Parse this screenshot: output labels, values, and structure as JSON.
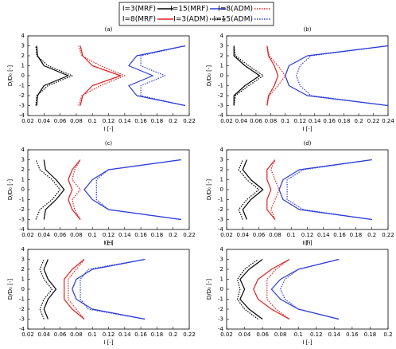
{
  "chart_data": {
    "type": "line",
    "legend": [
      {
        "name": "I=3(MRF)",
        "color": "#000000",
        "dash": "solid"
      },
      {
        "name": "I=15(MRF)",
        "color": "#2b3bd6",
        "dash": "solid"
      },
      {
        "name": "I=8(ADM)",
        "color": "#e02020",
        "dash": "dotted"
      },
      {
        "name": "I=8(MRF)",
        "color": "#e02020",
        "dash": "solid"
      },
      {
        "name": "I=3(ADM)",
        "color": "#000000",
        "dash": "dotted"
      },
      {
        "name": "I=15(ADM)",
        "color": "#2b3bd6",
        "dash": "dotted"
      }
    ],
    "panels": [
      {
        "label": "(a)",
        "xlabel": "I [-]",
        "ylabel": "D/D₀ [-]",
        "xlim": [
          0.02,
          0.22
        ],
        "xticks": [
          0.02,
          0.04,
          0.06,
          0.08,
          0.1,
          0.12,
          0.14,
          0.16,
          0.18,
          0.2,
          0.22
        ],
        "ylim": [
          -4,
          4
        ],
        "yticks": [
          -4,
          -3,
          -2,
          -1,
          0,
          1,
          2,
          3,
          4
        ],
        "series": [
          {
            "x": [
              0.031,
              0.032,
              0.04,
              0.07,
              0.04,
              0.032,
              0.031
            ],
            "values": [
              -3,
              -2,
              -1,
              0,
              1,
              2,
              3
            ]
          },
          {
            "x": [
              0.215,
              0.155,
              0.145,
              0.175,
              0.145,
              0.155,
              0.215
            ],
            "values": [
              -3,
              -2,
              -1,
              0,
              1,
              2,
              3
            ]
          },
          {
            "x": [
              0.083,
              0.087,
              0.11,
              0.14,
              0.11,
              0.087,
              0.083
            ],
            "values": [
              -3,
              -2,
              -1,
              0,
              1,
              2,
              3
            ]
          },
          {
            "x": [
              0.085,
              0.088,
              0.1,
              0.135,
              0.1,
              0.088,
              0.085
            ],
            "values": [
              -3,
              -2,
              -1,
              0,
              1,
              2,
              3
            ]
          },
          {
            "x": [
              0.03,
              0.031,
              0.045,
              0.075,
              0.045,
              0.031,
              0.03
            ],
            "values": [
              -3,
              -2,
              -1,
              0,
              1,
              2,
              3
            ]
          },
          {
            "x": [
              0.215,
              0.16,
              0.16,
              0.19,
              0.16,
              0.16,
              0.215
            ],
            "values": [
              -3,
              -2,
              -1,
              0,
              1,
              2,
              3
            ]
          }
        ]
      },
      {
        "label": "(b)",
        "xlabel": "I [-]",
        "ylabel": "D/D₀ [-]",
        "xlim": [
          0.02,
          0.24
        ],
        "xticks": [
          0.02,
          0.04,
          0.06,
          0.08,
          0.1,
          0.12,
          0.14,
          0.16,
          0.18,
          0.2,
          0.22,
          0.24
        ],
        "ylim": [
          -4,
          4
        ],
        "yticks": [
          -4,
          -3,
          -2,
          -1,
          0,
          1,
          2,
          3,
          4
        ],
        "series": [
          {
            "x": [
              0.03,
              0.03,
              0.045,
              0.065,
              0.045,
              0.03,
              0.03
            ],
            "values": [
              -3,
              -2,
              -1,
              0,
              1,
              2,
              3
            ]
          },
          {
            "x": [
              0.24,
              0.13,
              0.105,
              0.1,
              0.105,
              0.13,
              0.24
            ],
            "values": [
              -3,
              -2,
              -1,
              0,
              1,
              2,
              3
            ]
          },
          {
            "x": [
              0.075,
              0.078,
              0.09,
              0.1,
              0.09,
              0.078,
              0.075
            ],
            "values": [
              -3,
              -2,
              -1,
              0,
              1,
              2,
              3
            ]
          },
          {
            "x": [
              0.075,
              0.077,
              0.085,
              0.09,
              0.085,
              0.077,
              0.075
            ],
            "values": [
              -3,
              -2,
              -1,
              0,
              1,
              2,
              3
            ]
          },
          {
            "x": [
              0.03,
              0.032,
              0.05,
              0.07,
              0.05,
              0.032,
              0.03
            ],
            "values": [
              -3,
              -2,
              -1,
              0,
              1,
              2,
              3
            ]
          },
          {
            "x": [
              0.24,
              0.135,
              0.12,
              0.115,
              0.12,
              0.135,
              0.24
            ],
            "values": [
              -3,
              -2,
              -1,
              0,
              1,
              2,
              3
            ]
          }
        ]
      },
      {
        "label": "(c)",
        "xlabel": "I [-]",
        "ylabel": "D/D₀ [-]",
        "xlim": [
          0.02,
          0.22
        ],
        "xticks": [
          0.02,
          0.04,
          0.06,
          0.08,
          0.1,
          0.12,
          0.14,
          0.16,
          0.18,
          0.2,
          0.22
        ],
        "ylim": [
          -4,
          4
        ],
        "yticks": [
          -4,
          -3,
          -2,
          -1,
          0,
          1,
          2,
          3,
          4
        ],
        "series": [
          {
            "x": [
              0.04,
              0.042,
              0.055,
              0.065,
              0.055,
              0.042,
              0.04
            ],
            "values": [
              -3,
              -2,
              -1,
              0,
              1,
              2,
              3
            ]
          },
          {
            "x": [
              0.21,
              0.12,
              0.1,
              0.09,
              0.1,
              0.12,
              0.21
            ],
            "values": [
              -3,
              -2,
              -1,
              0,
              1,
              2,
              3
            ]
          },
          {
            "x": [
              0.085,
              0.078,
              0.075,
              0.085,
              0.075,
              0.078,
              0.085
            ],
            "values": [
              -3,
              -2,
              -1,
              0,
              1,
              2,
              3
            ]
          },
          {
            "x": [
              0.085,
              0.075,
              0.07,
              0.075,
              0.07,
              0.075,
              0.085
            ],
            "values": [
              -3,
              -2,
              -1,
              0,
              1,
              2,
              3
            ]
          },
          {
            "x": [
              0.03,
              0.035,
              0.05,
              0.06,
              0.05,
              0.035,
              0.03
            ],
            "values": [
              -3,
              -2,
              -1,
              0,
              1,
              2,
              3
            ]
          },
          {
            "x": [
              0.21,
              0.12,
              0.105,
              0.105,
              0.105,
              0.12,
              0.21
            ],
            "values": [
              -3,
              -2,
              -1,
              0,
              1,
              2,
              3
            ]
          }
        ]
      },
      {
        "label": "(d)",
        "xlabel": "I [-]",
        "ylabel": "D/D₀ [-]",
        "xlim": [
          0.02,
          0.22
        ],
        "xticks": [
          0.02,
          0.04,
          0.06,
          0.08,
          0.1,
          0.12,
          0.14,
          0.16,
          0.18,
          0.2,
          0.22
        ],
        "ylim": [
          -4,
          4
        ],
        "yticks": [
          -4,
          -3,
          -2,
          -1,
          0,
          1,
          2,
          3,
          4
        ],
        "series": [
          {
            "x": [
              0.045,
              0.04,
              0.05,
              0.065,
              0.05,
              0.04,
              0.045
            ],
            "values": [
              -3,
              -2,
              -1,
              0,
              1,
              2,
              3
            ]
          },
          {
            "x": [
              0.2,
              0.11,
              0.09,
              0.085,
              0.09,
              0.11,
              0.2
            ],
            "values": [
              -3,
              -2,
              -1,
              0,
              1,
              2,
              3
            ]
          },
          {
            "x": [
              0.08,
              0.075,
              0.08,
              0.085,
              0.08,
              0.075,
              0.08
            ],
            "values": [
              -3,
              -2,
              -1,
              0,
              1,
              2,
              3
            ]
          },
          {
            "x": [
              0.08,
              0.07,
              0.07,
              0.075,
              0.07,
              0.07,
              0.08
            ],
            "values": [
              -3,
              -2,
              -1,
              0,
              1,
              2,
              3
            ]
          },
          {
            "x": [
              0.04,
              0.035,
              0.045,
              0.06,
              0.045,
              0.035,
              0.04
            ],
            "values": [
              -3,
              -2,
              -1,
              0,
              1,
              2,
              3
            ]
          },
          {
            "x": [
              0.2,
              0.115,
              0.095,
              0.095,
              0.095,
              0.115,
              0.2
            ],
            "values": [
              -3,
              -2,
              -1,
              0,
              1,
              2,
              3
            ]
          }
        ]
      },
      {
        "label": "(e)",
        "xlabel": "I [-]",
        "ylabel": "D/D₀ [-]",
        "xlim": [
          0.02,
          0.22
        ],
        "xticks": [
          0.02,
          0.04,
          0.06,
          0.08,
          0.1,
          0.12,
          0.14,
          0.16,
          0.18,
          0.2,
          0.22
        ],
        "ylim": [
          -4,
          4
        ],
        "yticks": [
          -4,
          -3,
          -2,
          -1,
          0,
          1,
          2,
          3,
          4
        ],
        "series": [
          {
            "x": [
              0.045,
              0.04,
              0.045,
              0.055,
              0.045,
              0.04,
              0.045
            ],
            "values": [
              -3,
              -2,
              -1,
              0,
              1,
              2,
              3
            ]
          },
          {
            "x": [
              0.165,
              0.1,
              0.08,
              0.075,
              0.08,
              0.1,
              0.165
            ],
            "values": [
              -3,
              -2,
              -1,
              0,
              1,
              2,
              3
            ]
          },
          {
            "x": [
              0.09,
              0.08,
              0.07,
              0.07,
              0.07,
              0.08,
              0.09
            ],
            "values": [
              -3,
              -2,
              -1,
              0,
              1,
              2,
              3
            ]
          },
          {
            "x": [
              0.09,
              0.075,
              0.065,
              0.065,
              0.065,
              0.075,
              0.09
            ],
            "values": [
              -3,
              -2,
              -1,
              0,
              1,
              2,
              3
            ]
          },
          {
            "x": [
              0.04,
              0.035,
              0.04,
              0.05,
              0.04,
              0.035,
              0.04
            ],
            "values": [
              -3,
              -2,
              -1,
              0,
              1,
              2,
              3
            ]
          },
          {
            "x": [
              0.165,
              0.095,
              0.085,
              0.085,
              0.085,
              0.095,
              0.165
            ],
            "values": [
              -3,
              -2,
              -1,
              0,
              1,
              2,
              3
            ]
          }
        ]
      },
      {
        "label": "(f)",
        "xlabel": "I [-]",
        "ylabel": "D/D₀ [-]",
        "xlim": [
          0.02,
          0.2
        ],
        "xticks": [
          0.02,
          0.04,
          0.06,
          0.08,
          0.1,
          0.12,
          0.14,
          0.16,
          0.18,
          0.2
        ],
        "ylim": [
          -4,
          4
        ],
        "yticks": [
          -4,
          -3,
          -2,
          -1,
          0,
          1,
          2,
          3,
          4
        ],
        "series": [
          {
            "x": [
              0.06,
              0.045,
              0.035,
              0.04,
              0.035,
              0.045,
              0.06
            ],
            "values": [
              -3,
              -2,
              -1,
              0,
              1,
              2,
              3
            ]
          },
          {
            "x": [
              0.145,
              0.1,
              0.08,
              0.07,
              0.08,
              0.1,
              0.145
            ],
            "values": [
              -3,
              -2,
              -1,
              0,
              1,
              2,
              3
            ]
          },
          {
            "x": [
              0.09,
              0.075,
              0.065,
              0.065,
              0.065,
              0.075,
              0.09
            ],
            "values": [
              -3,
              -2,
              -1,
              0,
              1,
              2,
              3
            ]
          },
          {
            "x": [
              0.09,
              0.07,
              0.055,
              0.05,
              0.055,
              0.07,
              0.09
            ],
            "values": [
              -3,
              -2,
              -1,
              0,
              1,
              2,
              3
            ]
          },
          {
            "x": [
              0.055,
              0.04,
              0.032,
              0.035,
              0.032,
              0.04,
              0.055
            ],
            "values": [
              -3,
              -2,
              -1,
              0,
              1,
              2,
              3
            ]
          },
          {
            "x": [
              0.145,
              0.1,
              0.085,
              0.08,
              0.085,
              0.1,
              0.145
            ],
            "values": [
              -3,
              -2,
              -1,
              0,
              1,
              2,
              3
            ]
          }
        ]
      }
    ]
  }
}
